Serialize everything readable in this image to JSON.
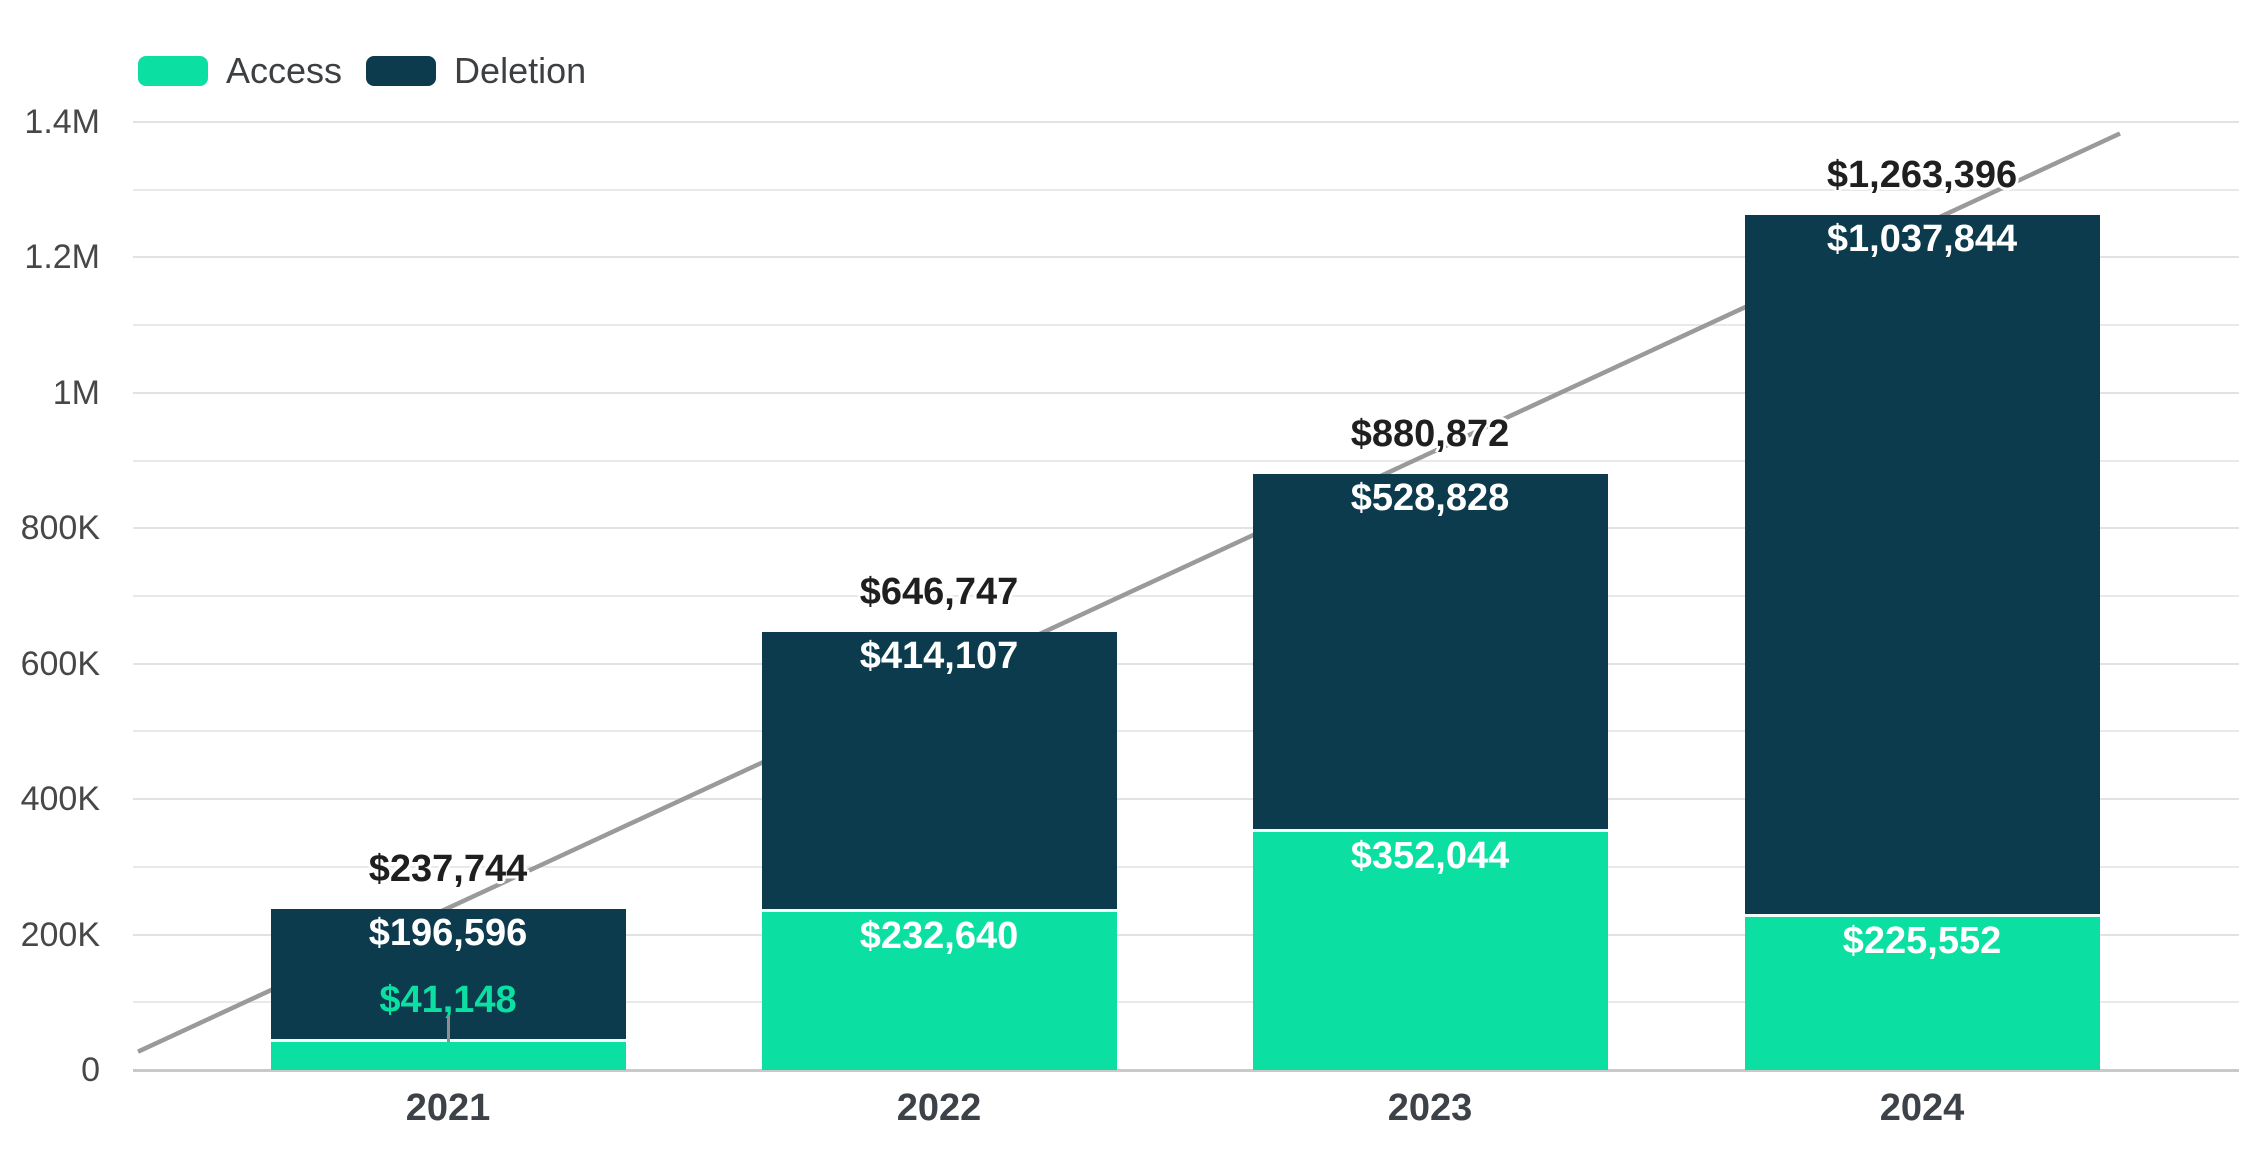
{
  "legend": {
    "items": [
      {
        "label": "Access",
        "color": "#0cdfa2"
      },
      {
        "label": "Deletion",
        "color": "#0d3b4e"
      }
    ]
  },
  "chart_data": {
    "type": "bar",
    "stacked": true,
    "categories": [
      "2021",
      "2022",
      "2023",
      "2024"
    ],
    "series": [
      {
        "name": "Access",
        "color": "#0cdfa2",
        "values": [
          41148,
          232640,
          352044,
          225552
        ],
        "labels": [
          "$41,148",
          "$232,640",
          "$352,044",
          "$225,552"
        ]
      },
      {
        "name": "Deletion",
        "color": "#0d3b4e",
        "values": [
          196596,
          414107,
          528828,
          1037844
        ],
        "labels": [
          "$196,596",
          "$414,107",
          "$528,828",
          "$1,037,844"
        ]
      }
    ],
    "totals": {
      "values": [
        237744,
        646747,
        880872,
        1263396
      ],
      "labels": [
        "$237,744",
        "$646,747",
        "$880,872",
        "$1,263,396"
      ]
    },
    "y_axis": {
      "range": [
        0,
        1400000
      ],
      "major_step": 200000,
      "minor_step": 100000,
      "ticks": [
        {
          "value": 0,
          "label": "0"
        },
        {
          "value": 200000,
          "label": "200K"
        },
        {
          "value": 400000,
          "label": "400K"
        },
        {
          "value": 600000,
          "label": "600K"
        },
        {
          "value": 800000,
          "label": "800K"
        },
        {
          "value": 1000000,
          "label": "1M"
        },
        {
          "value": 1200000,
          "label": "1.2M"
        },
        {
          "value": 1400000,
          "label": "1.4M"
        }
      ]
    },
    "trendline": {
      "color": "#9a9a9a",
      "start_value": 27000,
      "end_value": 1383000
    },
    "grid": true,
    "legend_position": "top-left",
    "colors": {
      "access": "#0cdfa2",
      "deletion": "#0d3b4e",
      "trendline": "#9a9a9a",
      "total_label": "#1f1f1f",
      "in_bar_label": "#ffffff",
      "access_callout_label": "#0cdfa2",
      "gridline": "#e5e5e5",
      "baseline": "#c9c9c9"
    }
  }
}
